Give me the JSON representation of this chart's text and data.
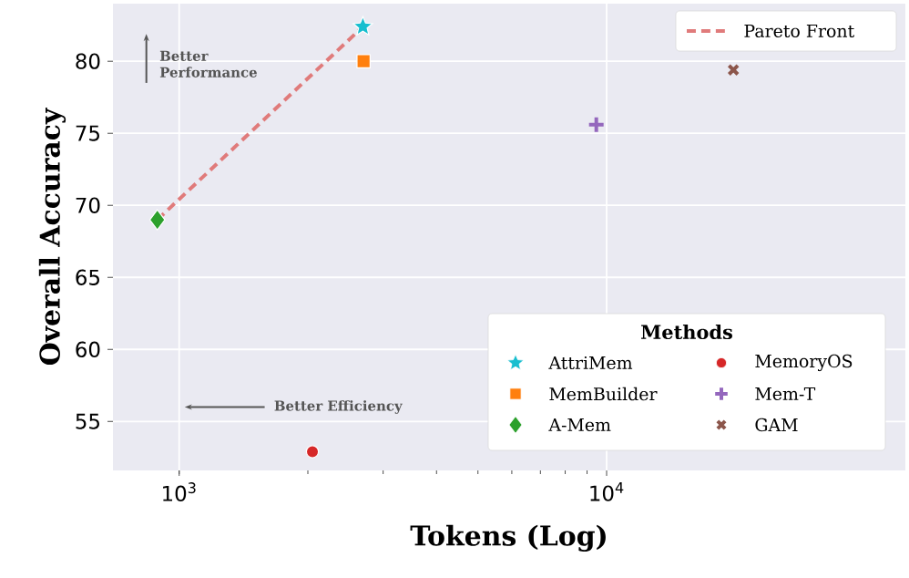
{
  "chart_data": {
    "type": "scatter",
    "xlabel": "Tokens (Log)",
    "ylabel": "Overall Accuracy",
    "legend_title": "Methods",
    "log": "x",
    "grid": true,
    "legend": "right",
    "xlim": [
      700,
      50000
    ],
    "ylim": [
      51.6,
      84
    ],
    "xticks": [
      {
        "value": 1000,
        "label": "10$^{3}$"
      },
      {
        "value": 10000,
        "label": "10$^{4}$"
      }
    ],
    "yticks": [
      55,
      60,
      65,
      70,
      75,
      80
    ],
    "series": [
      {
        "name": "AttriMem",
        "color": "#17becf",
        "marker": "star",
        "x": [
          2690
        ],
        "values": [
          82.4
        ]
      },
      {
        "name": "MemBuilder",
        "color": "#ff7f0e",
        "marker": "square",
        "x": [
          2700
        ],
        "values": [
          80.0
        ]
      },
      {
        "name": "A-Mem",
        "color": "#2ca02c",
        "marker": "diamond",
        "x": [
          889
        ],
        "values": [
          69.0
        ]
      },
      {
        "name": "MemoryOS",
        "color": "#d62728",
        "marker": "circle",
        "x": [
          2050
        ],
        "values": [
          52.9
        ]
      },
      {
        "name": "Mem-T",
        "color": "#9467bd",
        "marker": "plus",
        "x": [
          9460
        ],
        "values": [
          75.6
        ]
      },
      {
        "name": "GAM",
        "color": "#8c564b",
        "marker": "cross",
        "x": [
          19800
        ],
        "values": [
          79.4
        ]
      },
      {
        "name": "Pareto Front",
        "type": "line",
        "color": "#e07b7b",
        "line_style": "dashed",
        "x": [
          889,
          2690
        ],
        "values": [
          69.0,
          82.4
        ]
      }
    ],
    "annotations": [
      "Better Performance",
      "Better Efficiency"
    ]
  }
}
